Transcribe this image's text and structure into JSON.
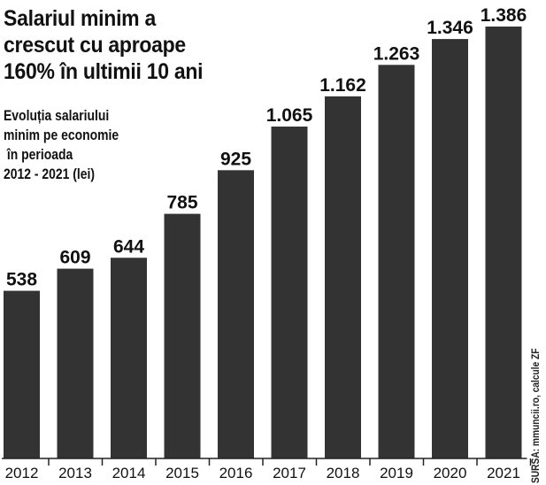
{
  "headline": [
    "Salariul minim a",
    "crescut cu aproape",
    "160% în ultimii 10 ani"
  ],
  "subtitle": "Evoluția salariului\nminim pe economie\n în perioada\n2012 - 2021 (lei)",
  "source": "SURSA: mmuncii.ro, calcule ZF",
  "colors": {
    "bar": "#333333",
    "axis": "#222222",
    "text": "#111111",
    "background": "#ffffff"
  },
  "chart_data": {
    "type": "bar",
    "categories": [
      "2012",
      "2013",
      "2014",
      "2015",
      "2016",
      "2017",
      "2018",
      "2019",
      "2020",
      "2021"
    ],
    "values": [
      538,
      609,
      644,
      785,
      925,
      1065,
      1162,
      1263,
      1346,
      1386
    ],
    "value_labels": [
      "538",
      "609",
      "644",
      "785",
      "925",
      "1.065",
      "1.162",
      "1.263",
      "1.346",
      "1.386"
    ],
    "title": "Salariul minim a crescut cu aproape 160% în ultimii 10 ani",
    "subtitle": "Evoluția salariului minim pe economie în perioada 2012 - 2021 (lei)",
    "xlabel": "",
    "ylabel": "",
    "ylim": [
      0,
      1386
    ],
    "grid": false,
    "legend": "none"
  }
}
